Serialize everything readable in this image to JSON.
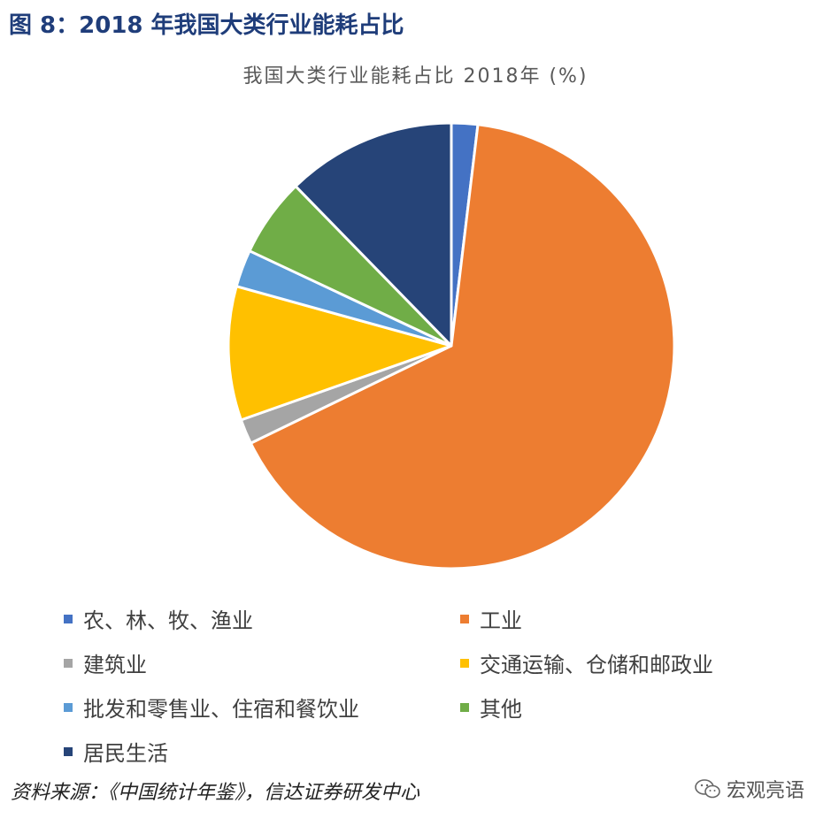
{
  "figure": {
    "title": "图 8：2018 年我国大类行业能耗占比",
    "source": "资料来源：《中国统计年鉴》，信达证券研发中心",
    "watermark": "宏观亮语"
  },
  "chart_data": {
    "type": "pie",
    "title": "我国大类行业能耗占比 2018年   (%)",
    "start_angle_deg": 0,
    "direction": "clockwise",
    "legend_position": "bottom",
    "slices": [
      {
        "name": "农、林、牧、渔业",
        "value": 1.9,
        "color": "#4472c4"
      },
      {
        "name": "工业",
        "value": 65.9,
        "color": "#ed7d31"
      },
      {
        "name": "建筑业",
        "value": 1.8,
        "color": "#a5a5a5"
      },
      {
        "name": "交通运输、仓储和邮政业",
        "value": 9.7,
        "color": "#ffc000"
      },
      {
        "name": "批发和零售业、住宿和餐饮业",
        "value": 2.7,
        "color": "#5b9bd5"
      },
      {
        "name": "其他",
        "value": 5.7,
        "color": "#70ad47"
      },
      {
        "name": "居民生活",
        "value": 12.3,
        "color": "#264478"
      }
    ]
  }
}
